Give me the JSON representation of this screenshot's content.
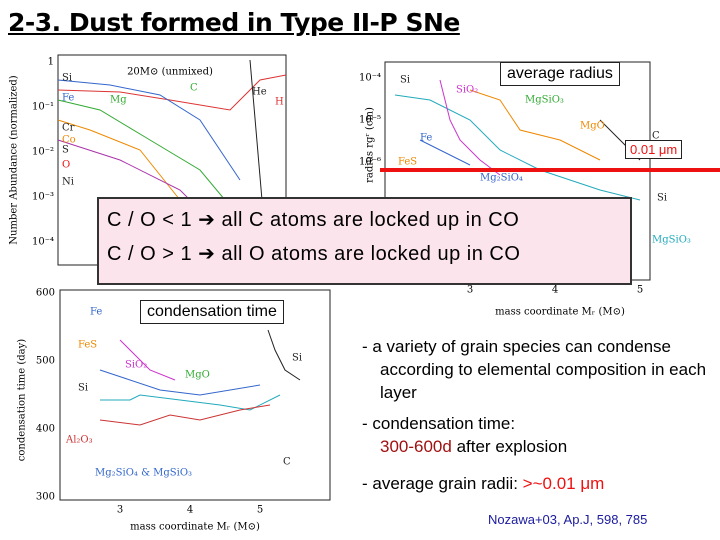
{
  "header": {
    "title": "2-3. Dust formed in Type II-P SNe"
  },
  "abundance_plot": {
    "title": "20M⊙ (unmixed)",
    "y_label": "Number Abundance (normalized)",
    "y_ticks": [
      "1",
      "10⁻¹",
      "10⁻²",
      "10⁻³",
      "10⁻⁴"
    ],
    "labels": [
      "Si",
      "Fe",
      "Mg",
      "C",
      "He",
      "H",
      "Cr",
      "S",
      "Co",
      "O",
      "Ni"
    ]
  },
  "radius_plot": {
    "y_label": "radius rɡʳ (cm)",
    "y_ticks": [
      "10⁻⁴",
      "10⁻⁵",
      "10⁻⁶"
    ],
    "x_ticks": [
      "3",
      "4",
      "5"
    ],
    "x_label": "mass coordinate Mᵣ (M⊙)",
    "labels": [
      "Si",
      "SiO₂",
      "MgSiO₃",
      "MgO",
      "Fe",
      "C",
      "FeS",
      "Mg₂SiO₄",
      "Si",
      "MgSiO₃"
    ],
    "average_radius": "average radius",
    "radius_mark": "0.01 μm"
  },
  "co_box": {
    "lines": [
      "C / O < 1  ➔ all C atoms are locked up in CO",
      "C / O > 1  ➔ all O atoms are locked up in CO"
    ]
  },
  "time_plot": {
    "caption": "condensation time",
    "y_label": "condensation time (day)",
    "y_ticks": [
      "600",
      "500",
      "400",
      "300"
    ],
    "x_ticks": [
      "3",
      "4",
      "5"
    ],
    "x_label": "mass coordinate Mᵣ (M⊙)",
    "labels": [
      "Fe",
      "FeS",
      "SiO₂",
      "MgO",
      "Si",
      "Si",
      "Al₂O₃",
      "Mg₂SiO₄ & MgSiO₃",
      "C"
    ]
  },
  "notes": {
    "item1": "- a variety of grain species can condense according to elemental composition in each layer",
    "item2_prefix": "-  condensation time:",
    "item2_highlight": "300-600d",
    "item2_suffix": "after explosion",
    "item3_prefix": "-  average grain radii:",
    "item3_highlight": ">~0.01 μm",
    "citation": "Nozawa+03, Ap.J, 598, 785"
  }
}
